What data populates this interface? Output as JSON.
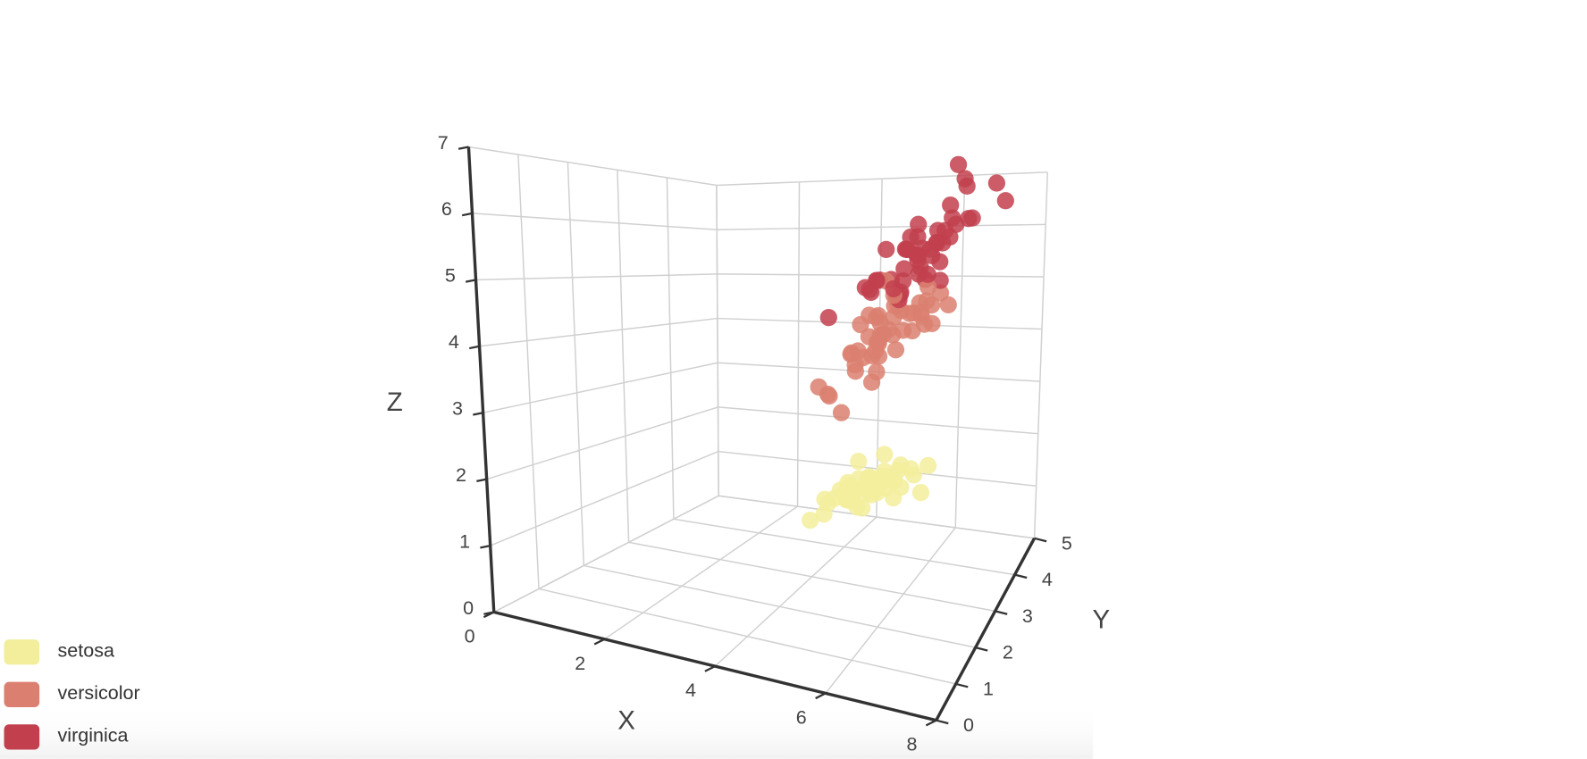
{
  "chart_data": {
    "type": "scatter3d",
    "xaxis_title": "X",
    "yaxis_title": "Y",
    "zaxis_title": "Z",
    "xlim": [
      0,
      8
    ],
    "ylim": [
      0,
      5
    ],
    "zlim": [
      0,
      7
    ],
    "xticks": [
      0,
      2,
      4,
      6,
      8
    ],
    "yticks": [
      0,
      1,
      2,
      3,
      4,
      5
    ],
    "zticks": [
      0,
      1,
      2,
      3,
      4,
      5,
      6,
      7
    ],
    "grid": true,
    "legend": "bottom-left",
    "series": [
      {
        "name": "setosa",
        "color": "#f3ee9c",
        "x": [
          5.1,
          4.9,
          4.7,
          4.6,
          5.0,
          5.4,
          4.6,
          5.0,
          4.4,
          4.9,
          5.4,
          4.8,
          4.8,
          4.3,
          5.8,
          5.7,
          5.4,
          5.1,
          5.7,
          5.1,
          5.4,
          5.1,
          4.6,
          5.1,
          4.8,
          5.0,
          5.0,
          5.2,
          5.2,
          4.7,
          4.8,
          5.4,
          5.2,
          5.5,
          4.9,
          5.0,
          5.5,
          4.9,
          4.4,
          5.1,
          5.0,
          4.5,
          4.4,
          5.0,
          5.1,
          4.8,
          5.1,
          4.6,
          5.3,
          5.0
        ],
        "y": [
          3.5,
          3.0,
          3.2,
          3.1,
          3.6,
          3.9,
          3.4,
          3.4,
          2.9,
          3.1,
          3.7,
          3.4,
          3.0,
          3.0,
          4.0,
          4.4,
          3.9,
          3.5,
          3.8,
          3.8,
          3.4,
          3.7,
          3.6,
          3.3,
          3.4,
          3.0,
          3.4,
          3.5,
          3.4,
          3.2,
          3.1,
          3.4,
          4.1,
          4.2,
          3.1,
          3.2,
          3.5,
          3.1,
          3.0,
          3.4,
          3.5,
          2.3,
          3.2,
          3.5,
          3.8,
          3.0,
          3.8,
          3.2,
          3.7,
          3.3
        ],
        "z": [
          1.4,
          1.4,
          1.3,
          1.5,
          1.4,
          1.7,
          1.4,
          1.5,
          1.4,
          1.5,
          1.5,
          1.6,
          1.4,
          1.1,
          1.2,
          1.5,
          1.3,
          1.4,
          1.7,
          1.5,
          1.7,
          1.5,
          1.0,
          1.7,
          1.9,
          1.6,
          1.6,
          1.5,
          1.4,
          1.6,
          1.6,
          1.5,
          1.5,
          1.4,
          1.5,
          1.2,
          1.3,
          1.5,
          1.3,
          1.5,
          1.3,
          1.3,
          1.3,
          1.6,
          1.9,
          1.4,
          1.6,
          1.4,
          1.5,
          1.4
        ]
      },
      {
        "name": "versicolor",
        "color": "#db8070",
        "x": [
          7.0,
          6.4,
          6.9,
          5.5,
          6.5,
          5.7,
          6.3,
          4.9,
          6.6,
          5.2,
          5.0,
          5.9,
          6.0,
          6.1,
          5.6,
          6.7,
          5.6,
          5.8,
          6.2,
          5.6,
          5.9,
          6.1,
          6.3,
          6.1,
          6.4,
          6.6,
          6.8,
          6.7,
          6.0,
          5.7,
          5.5,
          5.5,
          5.8,
          6.0,
          5.4,
          6.0,
          6.7,
          6.3,
          5.6,
          5.5,
          5.5,
          6.1,
          5.8,
          5.0,
          5.6,
          5.7,
          5.7,
          6.2,
          5.1,
          5.7
        ],
        "y": [
          3.2,
          3.2,
          3.1,
          2.3,
          2.8,
          2.8,
          3.3,
          2.4,
          2.9,
          2.7,
          2.0,
          3.0,
          2.2,
          2.9,
          2.9,
          3.1,
          3.0,
          2.7,
          2.2,
          2.5,
          3.2,
          2.8,
          2.5,
          2.8,
          2.9,
          3.0,
          2.8,
          3.0,
          2.9,
          2.6,
          2.4,
          2.4,
          2.7,
          2.7,
          3.0,
          3.4,
          3.1,
          2.3,
          3.0,
          2.5,
          2.6,
          3.0,
          2.6,
          2.3,
          2.7,
          3.0,
          2.9,
          2.9,
          2.5,
          2.8
        ],
        "z": [
          4.7,
          4.5,
          4.9,
          4.0,
          4.6,
          4.5,
          4.7,
          3.3,
          4.6,
          3.9,
          3.5,
          4.2,
          4.0,
          4.7,
          3.6,
          4.4,
          4.5,
          4.1,
          4.5,
          3.9,
          4.8,
          4.0,
          4.9,
          4.7,
          4.3,
          4.4,
          4.8,
          5.0,
          4.5,
          3.5,
          3.8,
          3.7,
          3.9,
          5.1,
          4.5,
          4.5,
          4.7,
          4.4,
          4.1,
          4.0,
          4.4,
          4.6,
          4.0,
          3.3,
          4.2,
          4.2,
          4.2,
          4.3,
          3.0,
          4.1
        ]
      },
      {
        "name": "virginica",
        "color": "#c23f4e",
        "x": [
          6.3,
          5.8,
          7.1,
          6.3,
          6.5,
          7.6,
          4.9,
          7.3,
          6.7,
          7.2,
          6.5,
          6.4,
          6.8,
          5.7,
          5.8,
          6.4,
          6.5,
          7.7,
          7.7,
          6.0,
          6.9,
          5.6,
          7.7,
          6.3,
          6.7,
          7.2,
          6.2,
          6.1,
          6.4,
          7.2,
          7.4,
          7.9,
          6.4,
          6.3,
          6.1,
          7.7,
          6.3,
          6.4,
          6.0,
          6.9,
          6.7,
          6.9,
          5.8,
          6.8,
          6.7,
          6.7,
          6.3,
          6.5,
          6.2,
          5.9
        ],
        "y": [
          3.3,
          2.7,
          3.0,
          2.9,
          3.0,
          3.0,
          2.5,
          2.9,
          2.5,
          3.6,
          3.2,
          2.7,
          3.0,
          2.5,
          2.8,
          3.2,
          3.0,
          3.8,
          2.6,
          2.2,
          3.2,
          2.8,
          2.8,
          2.7,
          3.3,
          3.2,
          2.8,
          3.0,
          2.8,
          3.0,
          2.8,
          3.8,
          2.8,
          2.8,
          2.6,
          3.0,
          3.4,
          3.1,
          3.0,
          3.1,
          3.1,
          3.1,
          2.7,
          3.2,
          3.3,
          3.0,
          2.5,
          3.0,
          3.4,
          3.0
        ],
        "z": [
          6.0,
          5.1,
          5.9,
          5.6,
          5.8,
          6.6,
          4.5,
          6.3,
          5.8,
          6.1,
          5.1,
          5.3,
          5.5,
          5.0,
          5.1,
          5.3,
          5.5,
          6.7,
          6.9,
          5.0,
          5.7,
          4.9,
          6.7,
          4.9,
          5.7,
          6.0,
          4.8,
          4.9,
          5.6,
          5.8,
          6.1,
          6.4,
          5.6,
          5.1,
          5.6,
          6.1,
          5.6,
          5.5,
          4.8,
          5.4,
          5.6,
          5.1,
          5.1,
          5.9,
          5.7,
          5.2,
          5.0,
          5.2,
          5.4,
          5.1
        ]
      }
    ]
  }
}
